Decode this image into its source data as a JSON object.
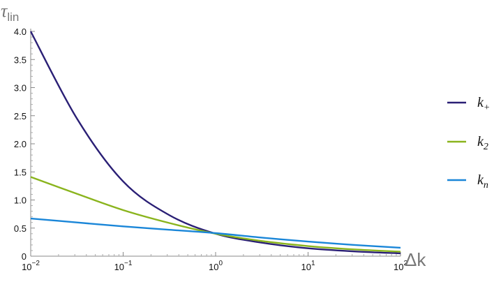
{
  "chart_data": {
    "type": "line",
    "xscale": "log",
    "xlabel": "Δk",
    "ylabel": "τ",
    "ylabel_sub": "lin",
    "xlim": [
      0.01,
      100
    ],
    "ylim": [
      0,
      4.0
    ],
    "x_ticks": [
      {
        "value": 0.01,
        "base": "10",
        "exp": "−2"
      },
      {
        "value": 0.1,
        "base": "10",
        "exp": "−1"
      },
      {
        "value": 1,
        "base": "10",
        "exp": "0"
      },
      {
        "value": 10,
        "base": "10",
        "exp": "1"
      },
      {
        "value": 100,
        "base": "10",
        "exp": "2"
      }
    ],
    "y_ticks": [
      {
        "value": 0,
        "label": "0"
      },
      {
        "value": 0.5,
        "label": "0.5"
      },
      {
        "value": 1.0,
        "label": "1.0"
      },
      {
        "value": 1.5,
        "label": "1.5"
      },
      {
        "value": 2.0,
        "label": "2.0"
      },
      {
        "value": 2.5,
        "label": "2.5"
      },
      {
        "value": 3.0,
        "label": "3.0"
      },
      {
        "value": 3.5,
        "label": "3.5"
      },
      {
        "value": 4.0,
        "label": "4.0"
      }
    ],
    "x": [
      0.01,
      0.0316,
      0.1,
      0.316,
      1,
      3.16,
      10,
      31.6,
      100
    ],
    "series": [
      {
        "name": "k",
        "name_sub": "+",
        "color": "#2a1f75",
        "values": [
          4.0,
          2.45,
          1.33,
          0.73,
          0.4,
          0.24,
          0.14,
          0.085,
          0.05
        ]
      },
      {
        "name": "k",
        "name_sub": "2",
        "color": "#8ab41d",
        "values": [
          1.41,
          1.11,
          0.82,
          0.59,
          0.4,
          0.27,
          0.18,
          0.12,
          0.08
        ]
      },
      {
        "name": "k",
        "name_sub": "n",
        "color": "#1a86d8",
        "values": [
          0.67,
          0.6,
          0.53,
          0.47,
          0.41,
          0.33,
          0.26,
          0.2,
          0.15
        ]
      }
    ],
    "grid": false,
    "legend": "right"
  }
}
